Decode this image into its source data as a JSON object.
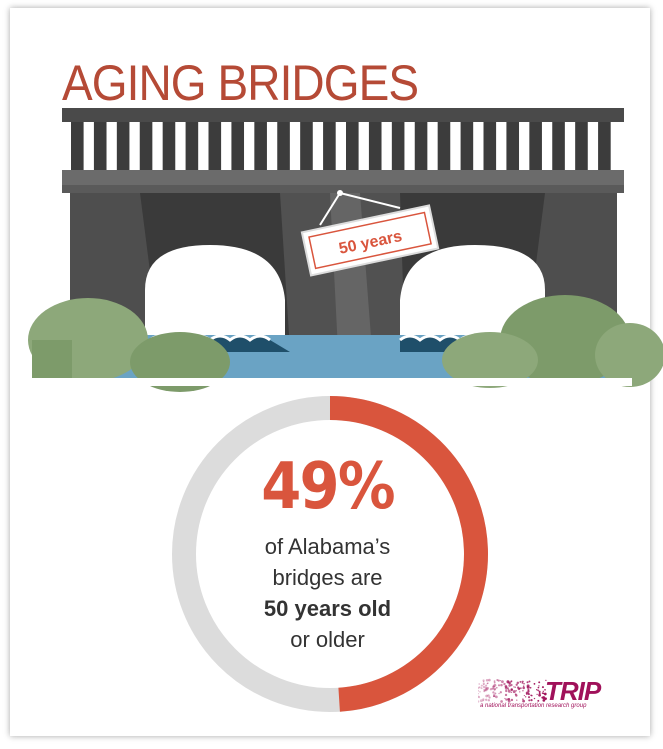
{
  "title": "AGING BRIDGES",
  "sign_label": "50 years",
  "stat": {
    "percent_text": "49%",
    "percent_value": 49,
    "line1": "of Alabama’s",
    "line2": "bridges are",
    "line3": "50 years old",
    "line4": "or older"
  },
  "logo": {
    "name": "TRIP",
    "tagline": "a national transportation research group"
  },
  "colors": {
    "title": "#b54a36",
    "accent": "#d9553d",
    "ring_track": "#dcdcdc",
    "bridge_dark": "#3d3d3d",
    "bridge_mid": "#555555",
    "water": "#6aa3c4",
    "bush": "#7d9b6a",
    "logo": "#a0115a"
  }
}
